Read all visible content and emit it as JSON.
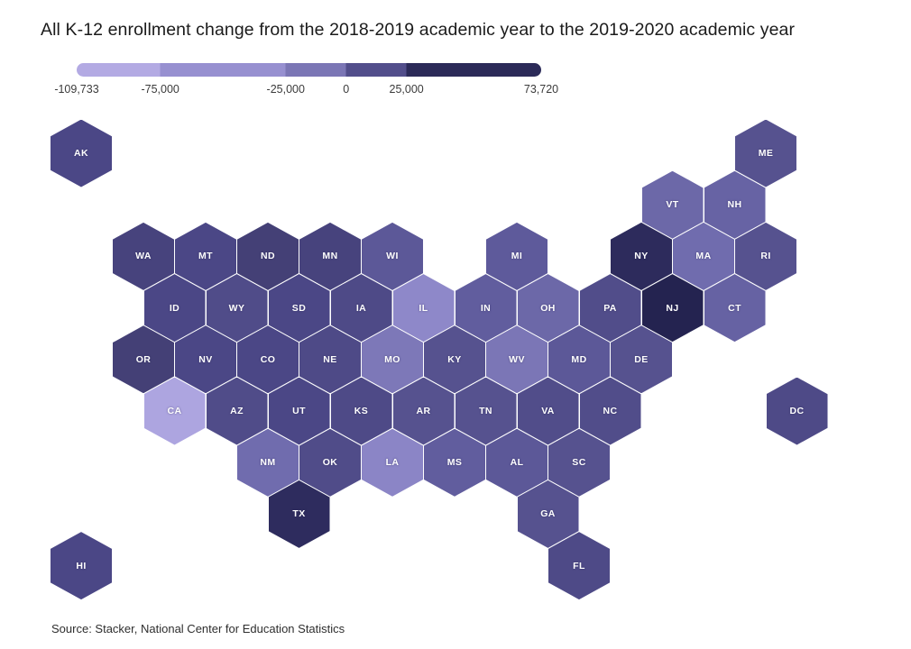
{
  "title": "All K-12 enrollment change from the 2018-2019 academic year to the 2019-2020 academic year",
  "source": "Source: Stacker, National Center for Education Statistics",
  "legend": {
    "segments": [
      {
        "color": "#b3aae3",
        "to": 18
      },
      {
        "color": "#9790d0",
        "to": 45
      },
      {
        "color": "#7b76b5",
        "to": 58
      },
      {
        "color": "#524e8b",
        "to": 71
      },
      {
        "color": "#2b2a58",
        "to": 100
      }
    ],
    "ticks": [
      {
        "label": "-109,733",
        "pos": 0
      },
      {
        "label": "-75,000",
        "pos": 18
      },
      {
        "label": "-25,000",
        "pos": 45
      },
      {
        "label": "0",
        "pos": 58
      },
      {
        "label": "25,000",
        "pos": 71
      },
      {
        "label": "73,720",
        "pos": 100
      }
    ]
  },
  "chart_data": {
    "type": "heatmap",
    "subtype": "hex_cartogram",
    "title": "All K-12 enrollment change from the 2018-2019 academic year to the 2019-2020 academic year",
    "colorbar": {
      "min": -109733,
      "max": 73720,
      "tick_labels": [
        "-109,733",
        "-75,000",
        "-25,000",
        "0",
        "25,000",
        "73,720"
      ],
      "min_color": "#b3aae3",
      "max_color": "#2b2a58"
    },
    "legend_position": "top-left",
    "states": [
      {
        "abbr": "AK",
        "row": 0,
        "col": 0,
        "color": "#4b4786"
      },
      {
        "abbr": "ME",
        "row": 0,
        "col": 11,
        "color": "#56528f"
      },
      {
        "abbr": "VT",
        "row": 1,
        "col": 9.5,
        "color": "#6c68a8"
      },
      {
        "abbr": "NH",
        "row": 1,
        "col": 10.5,
        "color": "#6763a4"
      },
      {
        "abbr": "WA",
        "row": 2,
        "col": 1,
        "color": "#47437d"
      },
      {
        "abbr": "MT",
        "row": 2,
        "col": 2,
        "color": "#4b4786"
      },
      {
        "abbr": "ND",
        "row": 2,
        "col": 3,
        "color": "#444076"
      },
      {
        "abbr": "MN",
        "row": 2,
        "col": 4,
        "color": "#47437d"
      },
      {
        "abbr": "WI",
        "row": 2,
        "col": 5,
        "color": "#5c5898"
      },
      {
        "abbr": "MI",
        "row": 2,
        "col": 7,
        "color": "#5e5a9b"
      },
      {
        "abbr": "NY",
        "row": 2,
        "col": 9,
        "color": "#2d2b5c"
      },
      {
        "abbr": "MA",
        "row": 2,
        "col": 10,
        "color": "#706cae"
      },
      {
        "abbr": "RI",
        "row": 2,
        "col": 11,
        "color": "#56528f"
      },
      {
        "abbr": "ID",
        "row": 3,
        "col": 1.5,
        "color": "#4b4786"
      },
      {
        "abbr": "WY",
        "row": 3,
        "col": 2.5,
        "color": "#504c89"
      },
      {
        "abbr": "SD",
        "row": 3,
        "col": 3.5,
        "color": "#4b4786"
      },
      {
        "abbr": "IA",
        "row": 3,
        "col": 4.5,
        "color": "#4e4a87"
      },
      {
        "abbr": "IL",
        "row": 3,
        "col": 5.5,
        "color": "#8e88c9"
      },
      {
        "abbr": "IN",
        "row": 3,
        "col": 6.5,
        "color": "#615d9e"
      },
      {
        "abbr": "OH",
        "row": 3,
        "col": 7.5,
        "color": "#6c68a8"
      },
      {
        "abbr": "PA",
        "row": 3,
        "col": 8.5,
        "color": "#514d8a"
      },
      {
        "abbr": "NJ",
        "row": 3,
        "col": 9.5,
        "color": "#242350"
      },
      {
        "abbr": "CT",
        "row": 3,
        "col": 10.5,
        "color": "#6662a3"
      },
      {
        "abbr": "OR",
        "row": 4,
        "col": 1,
        "color": "#444076"
      },
      {
        "abbr": "NV",
        "row": 4,
        "col": 2,
        "color": "#4b4786"
      },
      {
        "abbr": "CO",
        "row": 4,
        "col": 3,
        "color": "#4b4786"
      },
      {
        "abbr": "NE",
        "row": 4,
        "col": 4,
        "color": "#4e4a87"
      },
      {
        "abbr": "MO",
        "row": 4,
        "col": 5,
        "color": "#7d78b8"
      },
      {
        "abbr": "KY",
        "row": 4,
        "col": 6,
        "color": "#56528f"
      },
      {
        "abbr": "WV",
        "row": 4,
        "col": 7,
        "color": "#7b76b6"
      },
      {
        "abbr": "MD",
        "row": 4,
        "col": 8,
        "color": "#5c5898"
      },
      {
        "abbr": "DE",
        "row": 4,
        "col": 9,
        "color": "#56528f"
      },
      {
        "abbr": "CA",
        "row": 5,
        "col": 1.5,
        "color": "#ada5e0"
      },
      {
        "abbr": "AZ",
        "row": 5,
        "col": 2.5,
        "color": "#504c89"
      },
      {
        "abbr": "UT",
        "row": 5,
        "col": 3.5,
        "color": "#4b4786"
      },
      {
        "abbr": "KS",
        "row": 5,
        "col": 4.5,
        "color": "#4e4a87"
      },
      {
        "abbr": "AR",
        "row": 5,
        "col": 5.5,
        "color": "#56528f"
      },
      {
        "abbr": "TN",
        "row": 5,
        "col": 6.5,
        "color": "#56528f"
      },
      {
        "abbr": "VA",
        "row": 5,
        "col": 7.5,
        "color": "#514d8a"
      },
      {
        "abbr": "NC",
        "row": 5,
        "col": 8.5,
        "color": "#514d8a"
      },
      {
        "abbr": "DC",
        "row": 5,
        "col": 11.5,
        "color": "#4e4a87"
      },
      {
        "abbr": "NM",
        "row": 6,
        "col": 3,
        "color": "#706cae"
      },
      {
        "abbr": "OK",
        "row": 6,
        "col": 4,
        "color": "#504c89"
      },
      {
        "abbr": "LA",
        "row": 6,
        "col": 5,
        "color": "#8b85c6"
      },
      {
        "abbr": "MS",
        "row": 6,
        "col": 6,
        "color": "#615d9e"
      },
      {
        "abbr": "AL",
        "row": 6,
        "col": 7,
        "color": "#5c5898"
      },
      {
        "abbr": "SC",
        "row": 6,
        "col": 8,
        "color": "#56528f"
      },
      {
        "abbr": "TX",
        "row": 7,
        "col": 3.5,
        "color": "#2e2c5e"
      },
      {
        "abbr": "GA",
        "row": 7,
        "col": 7.5,
        "color": "#56528f"
      },
      {
        "abbr": "HI",
        "row": 8,
        "col": 0,
        "color": "#4b4786"
      },
      {
        "abbr": "FL",
        "row": 8,
        "col": 8,
        "color": "#4e4a87"
      }
    ]
  }
}
